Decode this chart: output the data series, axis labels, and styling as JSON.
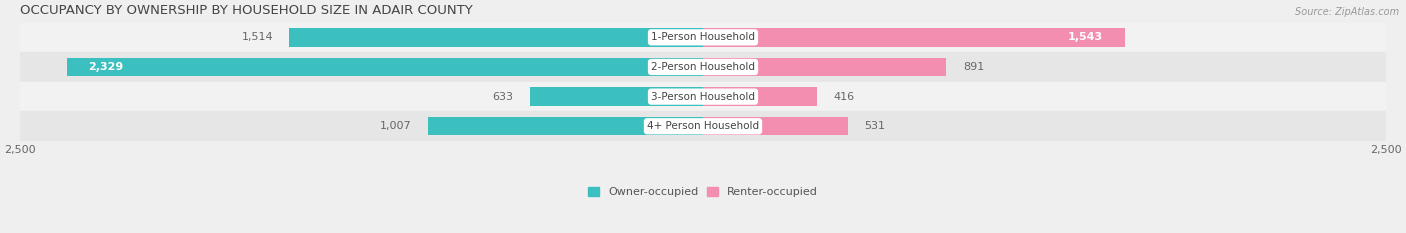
{
  "title": "OCCUPANCY BY OWNERSHIP BY HOUSEHOLD SIZE IN ADAIR COUNTY",
  "source": "Source: ZipAtlas.com",
  "categories": [
    "1-Person Household",
    "2-Person Household",
    "3-Person Household",
    "4+ Person Household"
  ],
  "owner_values": [
    1514,
    2329,
    633,
    1007
  ],
  "renter_values": [
    1543,
    891,
    416,
    531
  ],
  "max_val": 2500,
  "owner_color": "#3BBFBF",
  "renter_color": "#F48EB1",
  "row_bg_colors": [
    "#F2F2F2",
    "#E6E6E6"
  ],
  "title_fontsize": 9.5,
  "bar_height": 0.62,
  "label_fontsize": 8,
  "cat_fontsize": 7.5,
  "figsize": [
    14.06,
    2.33
  ],
  "dpi": 100
}
